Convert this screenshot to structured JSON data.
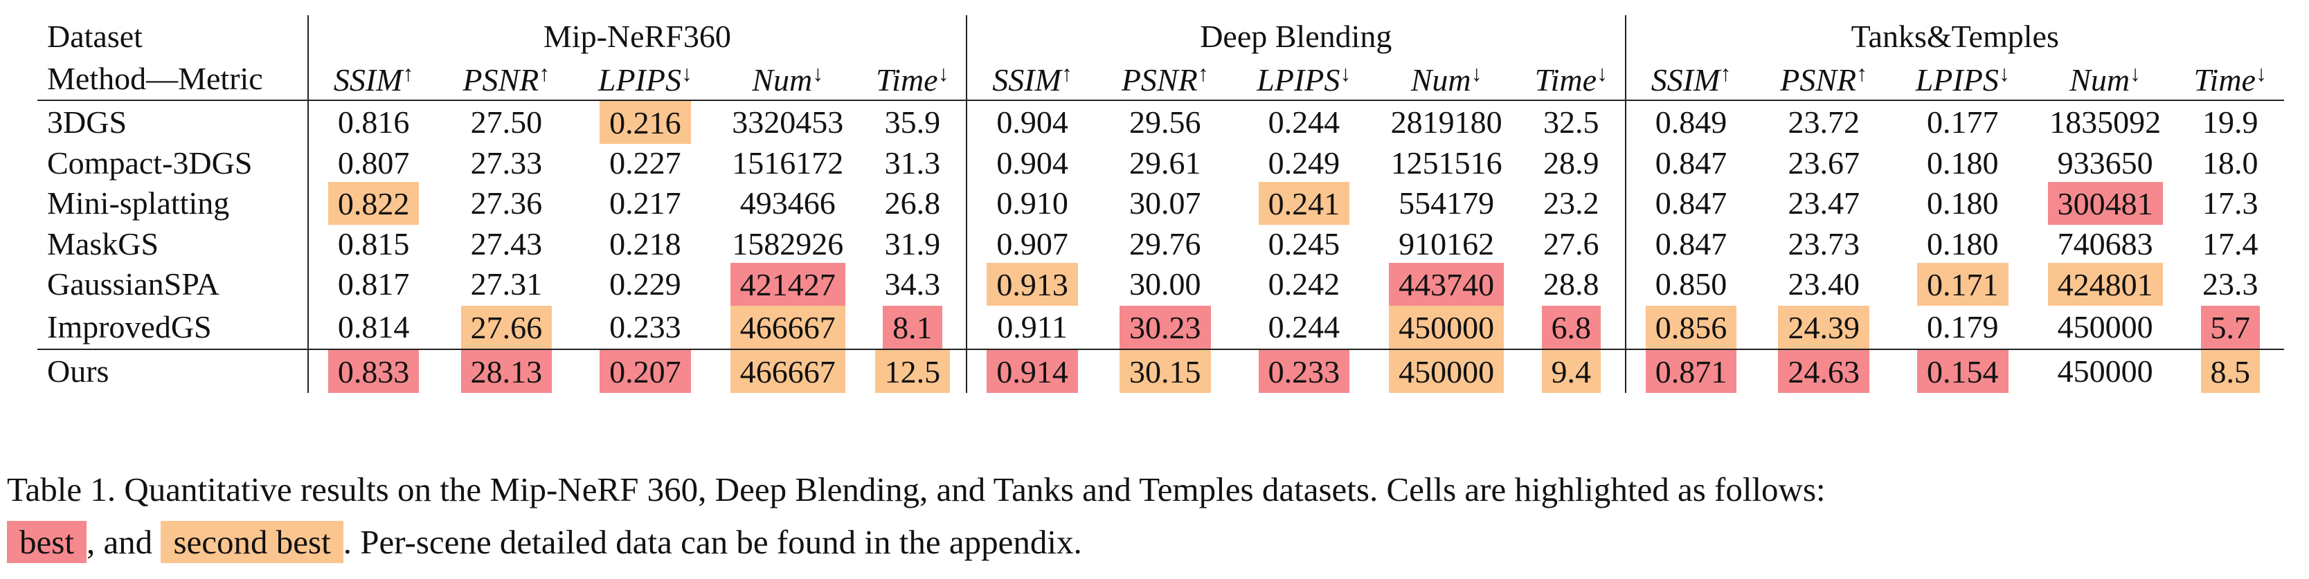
{
  "table": {
    "header": {
      "dataset_label": "Dataset",
      "method_label": "Method—Metric",
      "datasets": [
        "Mip-NeRF360",
        "Deep Blending",
        "Tanks&Temples"
      ],
      "metrics": [
        {
          "name": "SSIM",
          "arrow": "↑"
        },
        {
          "name": "PSNR",
          "arrow": "↑"
        },
        {
          "name": "LPIPS",
          "arrow": "↓"
        },
        {
          "name": "Num",
          "arrow": "↓"
        },
        {
          "name": "Time",
          "arrow": "↓"
        }
      ]
    },
    "rows": [
      {
        "method": "3DGS",
        "values": [
          [
            "0.816",
            ""
          ],
          [
            "27.50",
            ""
          ],
          [
            "0.216",
            "second"
          ],
          [
            "3320453",
            ""
          ],
          [
            "35.9",
            ""
          ],
          [
            "0.904",
            ""
          ],
          [
            "29.56",
            ""
          ],
          [
            "0.244",
            ""
          ],
          [
            "2819180",
            ""
          ],
          [
            "32.5",
            ""
          ],
          [
            "0.849",
            ""
          ],
          [
            "23.72",
            ""
          ],
          [
            "0.177",
            ""
          ],
          [
            "1835092",
            ""
          ],
          [
            "19.9",
            ""
          ]
        ]
      },
      {
        "method": "Compact-3DGS",
        "values": [
          [
            "0.807",
            ""
          ],
          [
            "27.33",
            ""
          ],
          [
            "0.227",
            ""
          ],
          [
            "1516172",
            ""
          ],
          [
            "31.3",
            ""
          ],
          [
            "0.904",
            ""
          ],
          [
            "29.61",
            ""
          ],
          [
            "0.249",
            ""
          ],
          [
            "1251516",
            ""
          ],
          [
            "28.9",
            ""
          ],
          [
            "0.847",
            ""
          ],
          [
            "23.67",
            ""
          ],
          [
            "0.180",
            ""
          ],
          [
            "933650",
            ""
          ],
          [
            "18.0",
            ""
          ]
        ]
      },
      {
        "method": "Mini-splatting",
        "values": [
          [
            "0.822",
            "second"
          ],
          [
            "27.36",
            ""
          ],
          [
            "0.217",
            ""
          ],
          [
            "493466",
            ""
          ],
          [
            "26.8",
            ""
          ],
          [
            "0.910",
            ""
          ],
          [
            "30.07",
            ""
          ],
          [
            "0.241",
            "second"
          ],
          [
            "554179",
            ""
          ],
          [
            "23.2",
            ""
          ],
          [
            "0.847",
            ""
          ],
          [
            "23.47",
            ""
          ],
          [
            "0.180",
            ""
          ],
          [
            "300481",
            "best"
          ],
          [
            "17.3",
            ""
          ]
        ]
      },
      {
        "method": "MaskGS",
        "values": [
          [
            "0.815",
            ""
          ],
          [
            "27.43",
            ""
          ],
          [
            "0.218",
            ""
          ],
          [
            "1582926",
            ""
          ],
          [
            "31.9",
            ""
          ],
          [
            "0.907",
            ""
          ],
          [
            "29.76",
            ""
          ],
          [
            "0.245",
            ""
          ],
          [
            "910162",
            ""
          ],
          [
            "27.6",
            ""
          ],
          [
            "0.847",
            ""
          ],
          [
            "23.73",
            ""
          ],
          [
            "0.180",
            ""
          ],
          [
            "740683",
            ""
          ],
          [
            "17.4",
            ""
          ]
        ]
      },
      {
        "method": "GaussianSPA",
        "values": [
          [
            "0.817",
            ""
          ],
          [
            "27.31",
            ""
          ],
          [
            "0.229",
            ""
          ],
          [
            "421427",
            "best"
          ],
          [
            "34.3",
            ""
          ],
          [
            "0.913",
            "second"
          ],
          [
            "30.00",
            ""
          ],
          [
            "0.242",
            ""
          ],
          [
            "443740",
            "best"
          ],
          [
            "28.8",
            ""
          ],
          [
            "0.850",
            ""
          ],
          [
            "23.40",
            ""
          ],
          [
            "0.171",
            "second"
          ],
          [
            "424801",
            "second"
          ],
          [
            "23.3",
            ""
          ]
        ]
      },
      {
        "method": "ImprovedGS",
        "values": [
          [
            "0.814",
            ""
          ],
          [
            "27.66",
            "second"
          ],
          [
            "0.233",
            ""
          ],
          [
            "466667",
            "second"
          ],
          [
            "8.1",
            "best"
          ],
          [
            "0.911",
            ""
          ],
          [
            "30.23",
            "best"
          ],
          [
            "0.244",
            ""
          ],
          [
            "450000",
            "second"
          ],
          [
            "6.8",
            "best"
          ],
          [
            "0.856",
            "second"
          ],
          [
            "24.39",
            "second"
          ],
          [
            "0.179",
            ""
          ],
          [
            "450000",
            ""
          ],
          [
            "5.7",
            "best"
          ]
        ]
      },
      {
        "method": "Ours",
        "values": [
          [
            "0.833",
            "best"
          ],
          [
            "28.13",
            "best"
          ],
          [
            "0.207",
            "best"
          ],
          [
            "466667",
            "second"
          ],
          [
            "12.5",
            "second"
          ],
          [
            "0.914",
            "best"
          ],
          [
            "30.15",
            "second"
          ],
          [
            "0.233",
            "best"
          ],
          [
            "450000",
            "second"
          ],
          [
            "9.4",
            "second"
          ],
          [
            "0.871",
            "best"
          ],
          [
            "24.63",
            "best"
          ],
          [
            "0.154",
            "best"
          ],
          [
            "450000",
            ""
          ],
          [
            "8.5",
            "second"
          ]
        ]
      }
    ]
  },
  "caption": {
    "line1": "Table 1. Quantitative results on the Mip-NeRF 360, Deep Blending, and Tanks and Temples datasets. Cells are highlighted as follows:",
    "best_label": "best",
    "mid_text": ", and ",
    "second_label": "second best",
    "end_text": ". Per-scene detailed data can be found in the appendix."
  },
  "colors": {
    "best": "#f5898d",
    "second": "#fbc58f"
  }
}
